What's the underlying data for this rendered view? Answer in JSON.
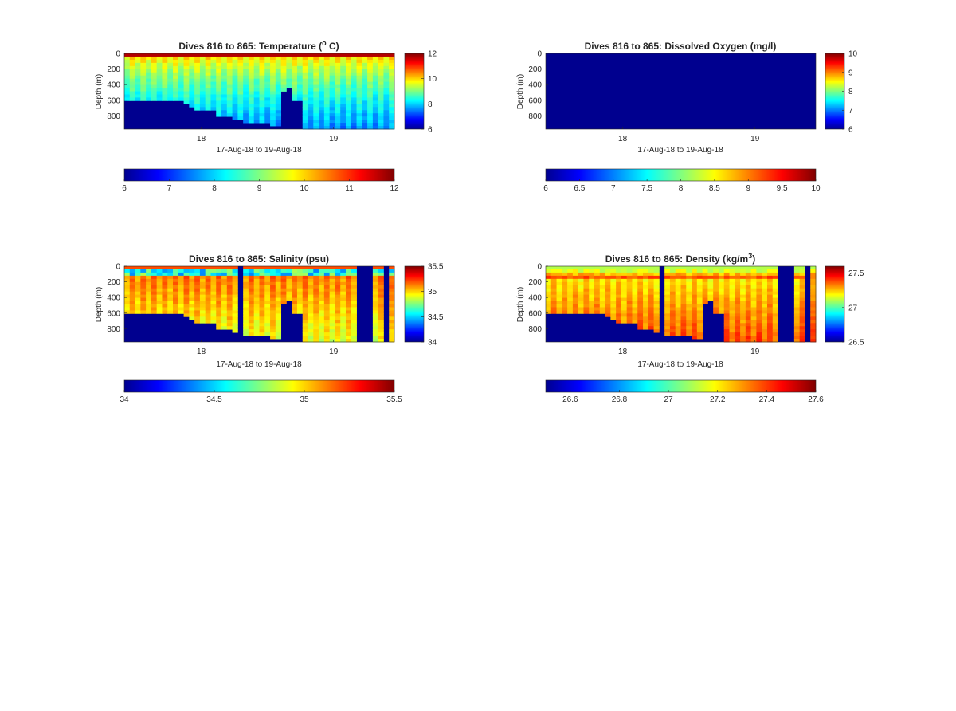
{
  "figure": {
    "background": "#ffffff"
  },
  "chart_data": [
    {
      "type": "heatmap",
      "title": "Dives 816 to 865: Temperature (",
      "title_sup": "o",
      "title_tail": " C)",
      "xlabel": "17-Aug-18 to 19-Aug-18",
      "ylabel": "Depth (m)",
      "xticks": [
        "18",
        "19"
      ],
      "yticks": [
        "0",
        "200",
        "400",
        "600",
        "800"
      ],
      "ylim": [
        0,
        970
      ],
      "clim": [
        6,
        12
      ],
      "side_colorbar_ticks": [
        "6",
        "8",
        "10",
        "12"
      ],
      "bottom_colorbar_ticks": [
        "6",
        "7",
        "8",
        "9",
        "10",
        "11",
        "12"
      ],
      "colormap": "jet",
      "approx_bottom_depths_m": [
        600,
        600,
        600,
        600,
        600,
        600,
        600,
        600,
        600,
        600,
        600,
        640,
        660,
        700,
        700,
        700,
        700,
        790,
        780,
        800,
        810,
        830,
        850,
        880,
        880,
        850,
        880,
        900,
        900,
        480,
        420,
        600,
        580,
        970,
        970,
        970,
        970,
        970,
        970,
        970,
        970,
        970,
        970,
        970,
        970,
        970,
        970,
        970,
        970,
        970
      ]
    },
    {
      "type": "heatmap",
      "title": "Dives 816 to 865: Dissolved Oxygen (mg/l)",
      "xlabel": "17-Aug-18 to 19-Aug-18",
      "ylabel": "Depth (m)",
      "xticks": [
        "18",
        "19"
      ],
      "yticks": [
        "0",
        "200",
        "400",
        "600",
        "800"
      ],
      "ylim": [
        0,
        970
      ],
      "clim": [
        6,
        10
      ],
      "side_colorbar_ticks": [
        "6",
        "7",
        "8",
        "9",
        "10"
      ],
      "bottom_colorbar_ticks": [
        "6",
        "6.5",
        "7",
        "7.5",
        "8",
        "8.5",
        "9",
        "9.5",
        "10"
      ],
      "colormap": "jet"
    },
    {
      "type": "heatmap",
      "title": "Dives 816 to 865: Salinity (psu)",
      "xlabel": "17-Aug-18 to 19-Aug-18",
      "ylabel": "Depth (m)",
      "xticks": [
        "18",
        "19"
      ],
      "yticks": [
        "0",
        "200",
        "400",
        "600",
        "800"
      ],
      "ylim": [
        0,
        970
      ],
      "clim": [
        34,
        35.5
      ],
      "side_colorbar_ticks": [
        "34",
        "34.5",
        "35",
        "35.5"
      ],
      "bottom_colorbar_ticks": [
        "34",
        "34.5",
        "35",
        "35.5"
      ],
      "colormap": "jet"
    },
    {
      "type": "heatmap",
      "title": "Dives 816 to 865: Density (kg/m",
      "title_sup": "3",
      "title_tail": ")",
      "xlabel": "17-Aug-18 to 19-Aug-18",
      "ylabel": "Depth (m)",
      "xticks": [
        "18",
        "19"
      ],
      "yticks": [
        "0",
        "200",
        "400",
        "600",
        "800"
      ],
      "ylim": [
        0,
        970
      ],
      "clim": [
        26.5,
        27.6
      ],
      "side_colorbar_ticks": [
        "26.5",
        "27",
        "27.5"
      ],
      "bottom_colorbar_ticks": [
        "26.6",
        "26.8",
        "27",
        "27.2",
        "27.4",
        "27.6"
      ],
      "colormap": "jet"
    }
  ]
}
